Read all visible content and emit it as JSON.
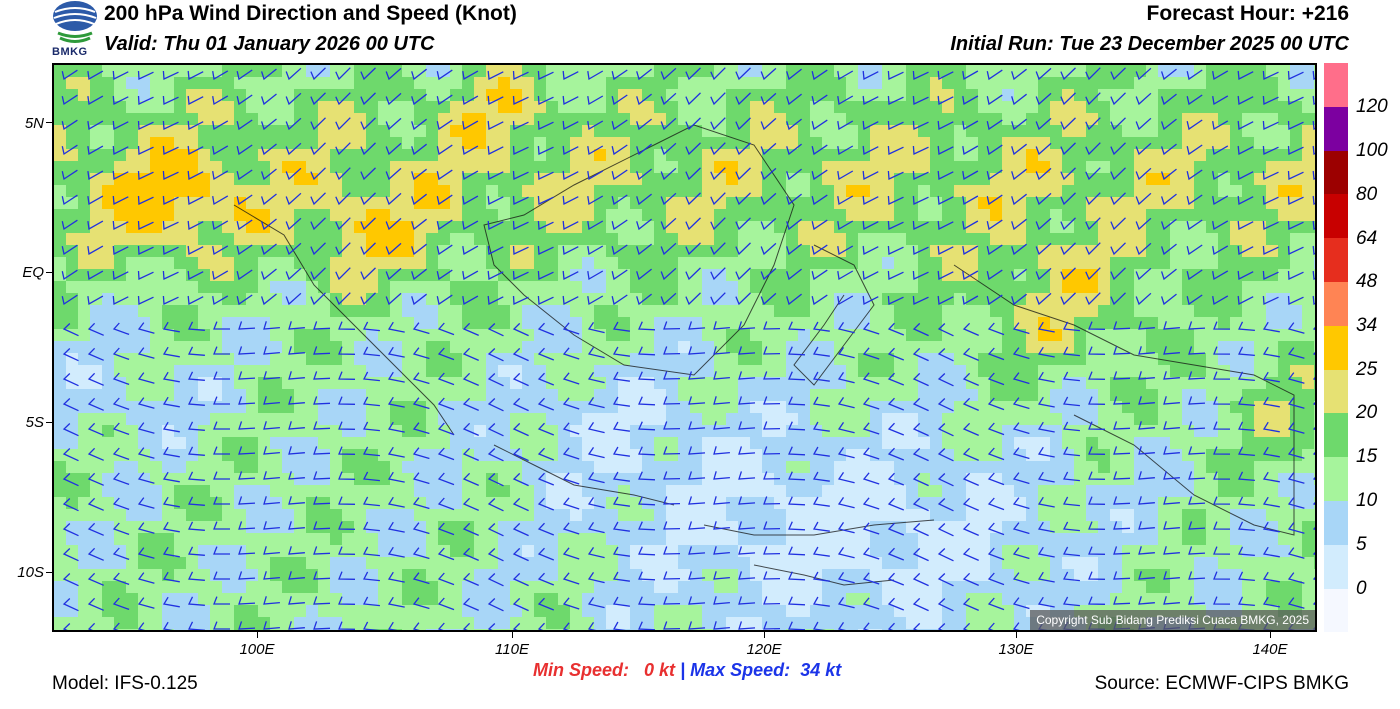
{
  "header": {
    "title": "200 hPa Wind Direction and Speed (Knot)",
    "valid": "Valid: Thu 01 January 2026 00 UTC",
    "forecast_hour": "Forecast Hour: +216",
    "initial_run": "Initial Run: Tue 23 December 2025 00 UTC",
    "logo_text": "BMKG"
  },
  "axes": {
    "lat_labels": [
      "5N",
      "EQ",
      "5S",
      "10S"
    ],
    "lon_labels": [
      "100E",
      "110E",
      "120E",
      "130E",
      "140E"
    ]
  },
  "colorbar": {
    "colors": [
      "#f5f8ff",
      "#d2ecfd",
      "#a8d6f7",
      "#a6f49c",
      "#6ed96c",
      "#e6e173",
      "#ffc800",
      "#ff8454",
      "#e62e1e",
      "#c80000",
      "#9c0000",
      "#7c00a0",
      "#ff6e8a"
    ],
    "labels": [
      "0",
      "5",
      "10",
      "15",
      "20",
      "25",
      "34",
      "48",
      "64",
      "80",
      "100",
      "120"
    ]
  },
  "copyright": "Copyright Sub Bidang Prediksi Cuaca BMKG, 2025",
  "footer": {
    "model": "Model: IFS-0.125",
    "source": "Source: ECMWF-CIPS BMKG",
    "min_label": "Min Speed:",
    "min_value": "0 kt",
    "separator": "|",
    "max_label": "Max Speed:",
    "max_value": "34 kt"
  }
}
